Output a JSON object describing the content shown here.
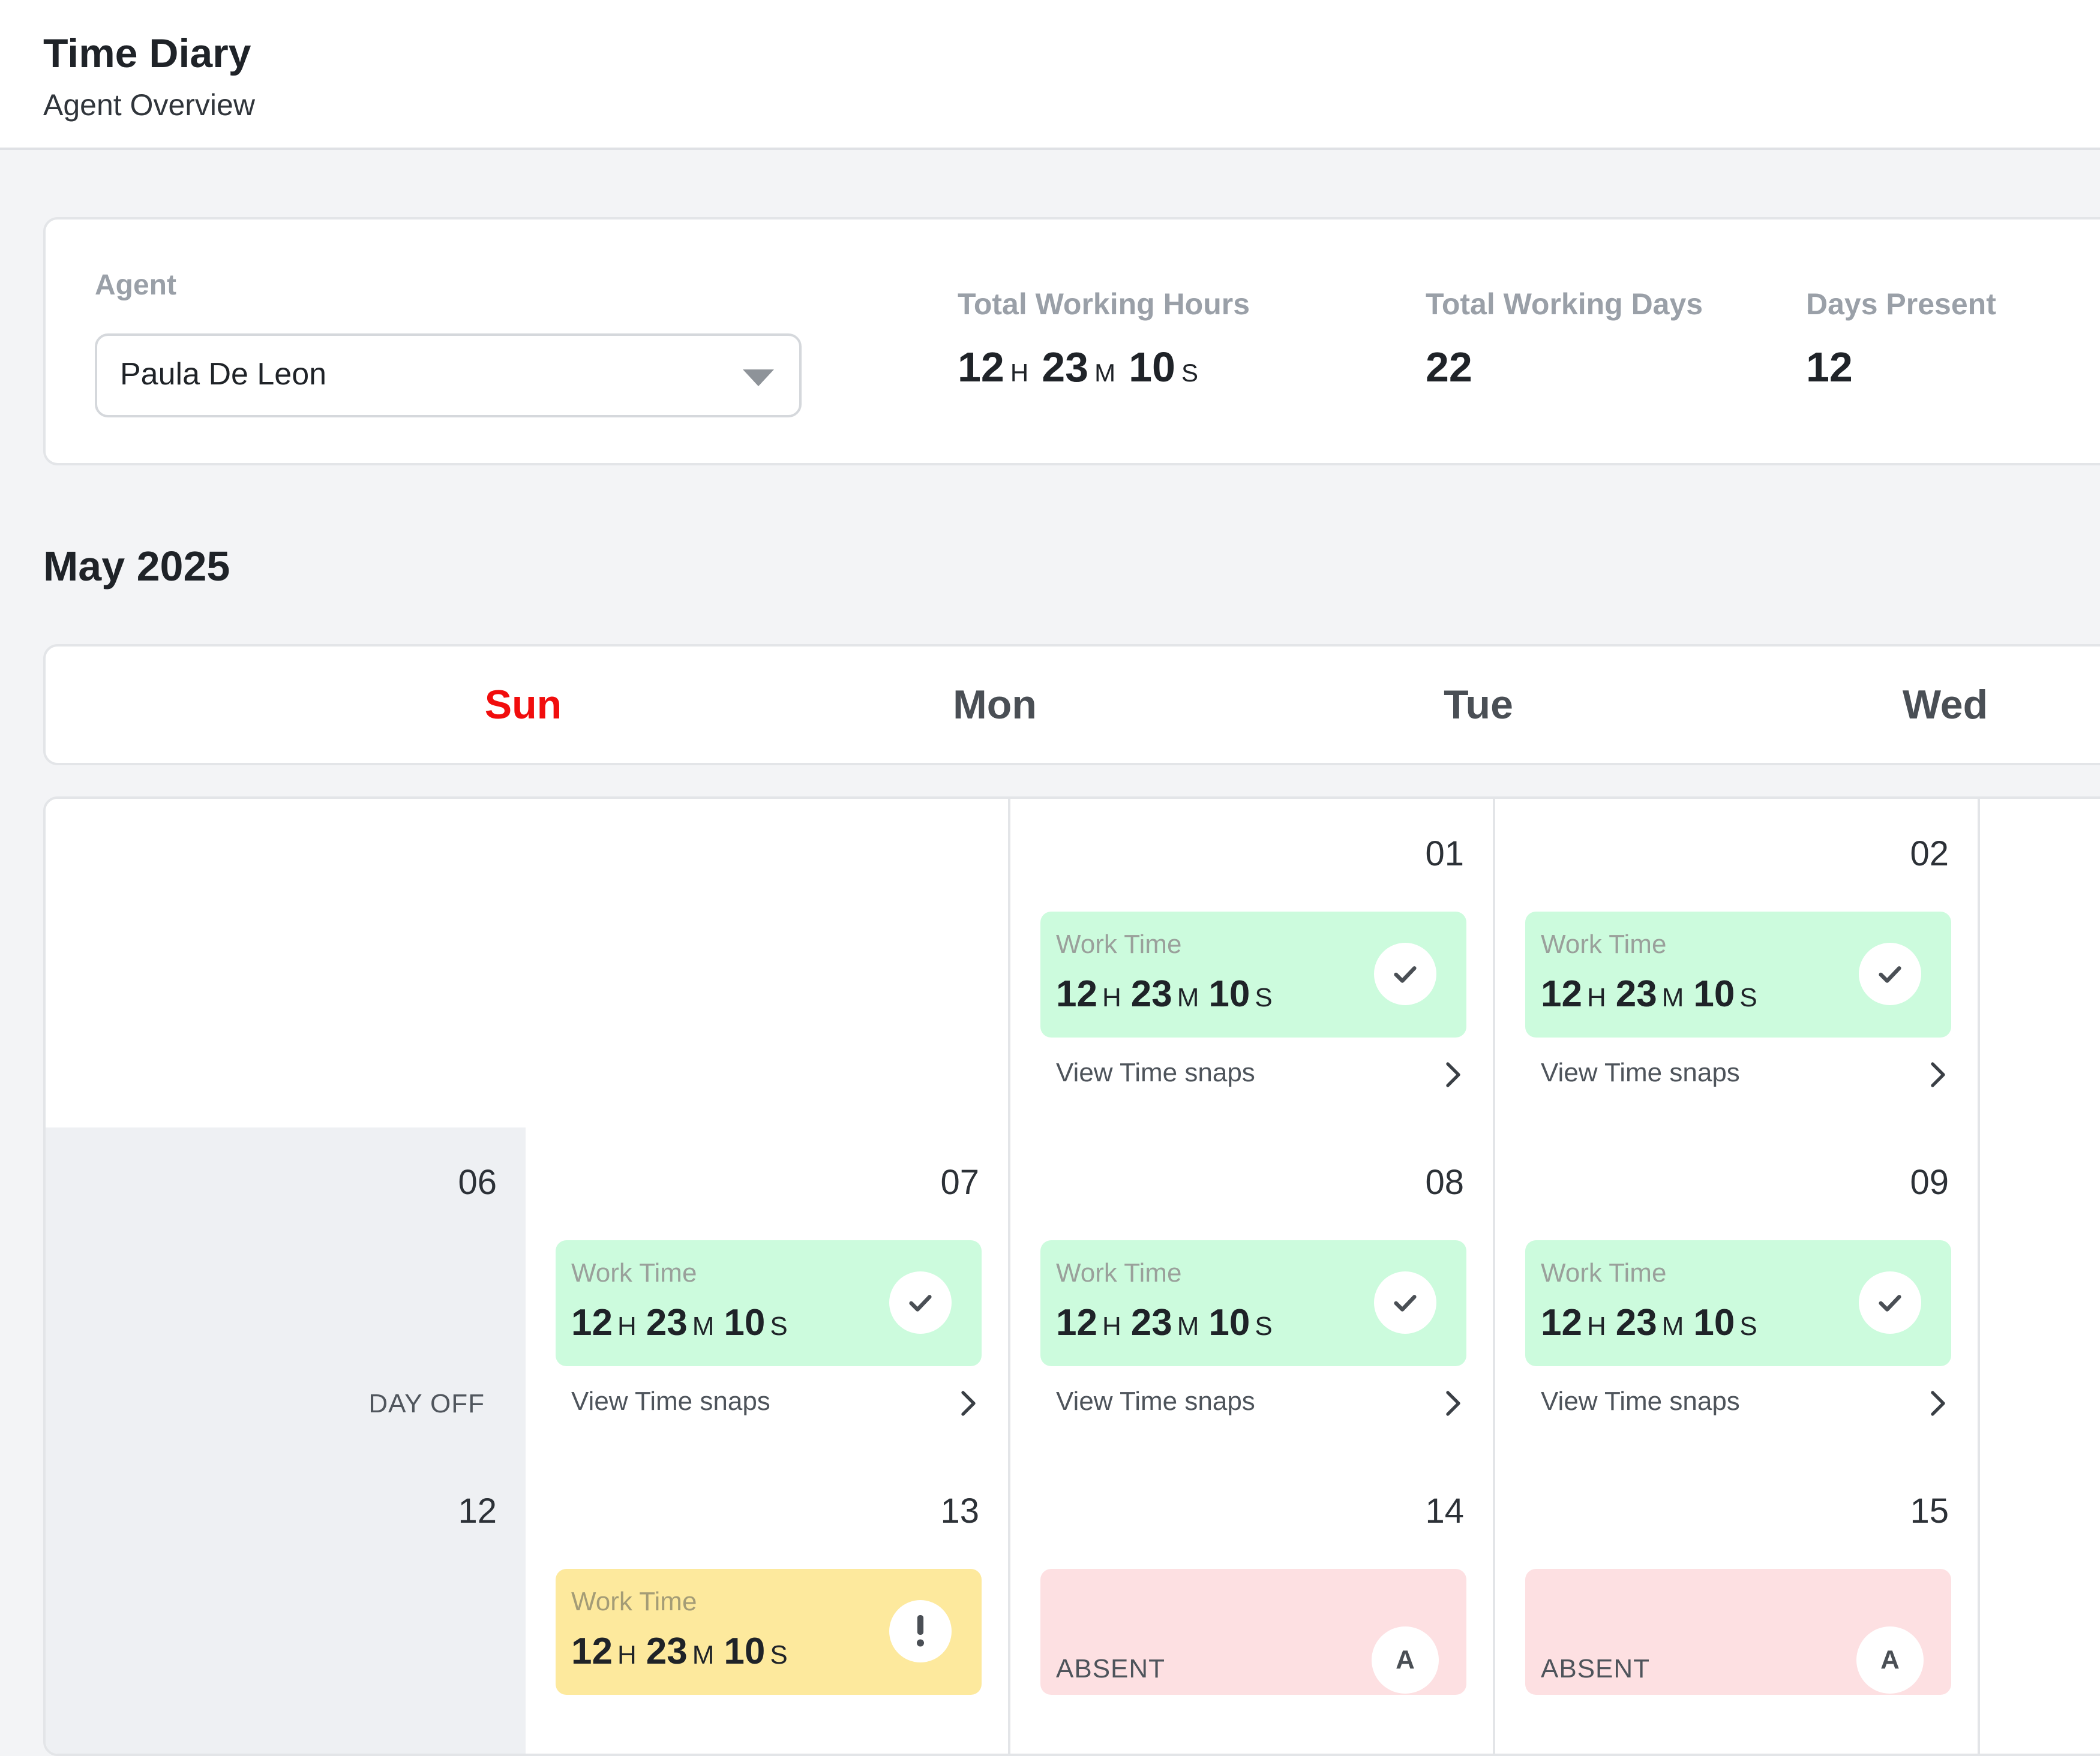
{
  "header": {
    "title": "Time Diary",
    "subtitle": "Agent Overview"
  },
  "summary": {
    "agent_label": "Agent",
    "agent_value": "Paula De Leon",
    "stats": [
      {
        "label": "Total Working Hours",
        "h": "12",
        "h_unit": "H",
        "m": "23",
        "m_unit": "M",
        "s": "10",
        "s_unit": "S"
      },
      {
        "label": "Total Working Days",
        "value": "22"
      },
      {
        "label": "Days Present",
        "value": "12"
      }
    ]
  },
  "month": "May 2025",
  "weekdays": [
    "Sun",
    "Mon",
    "Tue",
    "Wed"
  ],
  "colors": {
    "sunday": "#f10d0d",
    "present": "#ccfbdd",
    "warning": "#fde99d",
    "absent": "#fde0e2",
    "day_off": "#eef0f3"
  },
  "labels": {
    "work_time": "Work Time",
    "view_snaps": "View Time snaps",
    "day_off": "DAY OFF",
    "absent": "ABSENT",
    "absent_badge": "A"
  },
  "calendar": {
    "rows": [
      [
        {
          "date": "",
          "status": "empty"
        },
        {
          "date": "",
          "status": "empty"
        },
        {
          "date": "01",
          "status": "present",
          "h": "12",
          "m": "23",
          "s": "10",
          "icon": "check-icon"
        },
        {
          "date": "02",
          "status": "present",
          "h": "12",
          "m": "23",
          "s": "10",
          "icon": "check-icon"
        }
      ],
      [
        {
          "date": "06",
          "status": "day-off"
        },
        {
          "date": "07",
          "status": "present",
          "h": "12",
          "m": "23",
          "s": "10",
          "icon": "check-icon"
        },
        {
          "date": "08",
          "status": "present",
          "h": "12",
          "m": "23",
          "s": "10",
          "icon": "check-icon"
        },
        {
          "date": "09",
          "status": "present",
          "h": "12",
          "m": "23",
          "s": "10",
          "icon": "check-icon"
        }
      ],
      [
        {
          "date": "12",
          "status": "day-off"
        },
        {
          "date": "13",
          "status": "warning",
          "h": "12",
          "m": "23",
          "s": "10",
          "icon": "exclamation-icon"
        },
        {
          "date": "14",
          "status": "absent"
        },
        {
          "date": "15",
          "status": "absent"
        }
      ]
    ]
  }
}
